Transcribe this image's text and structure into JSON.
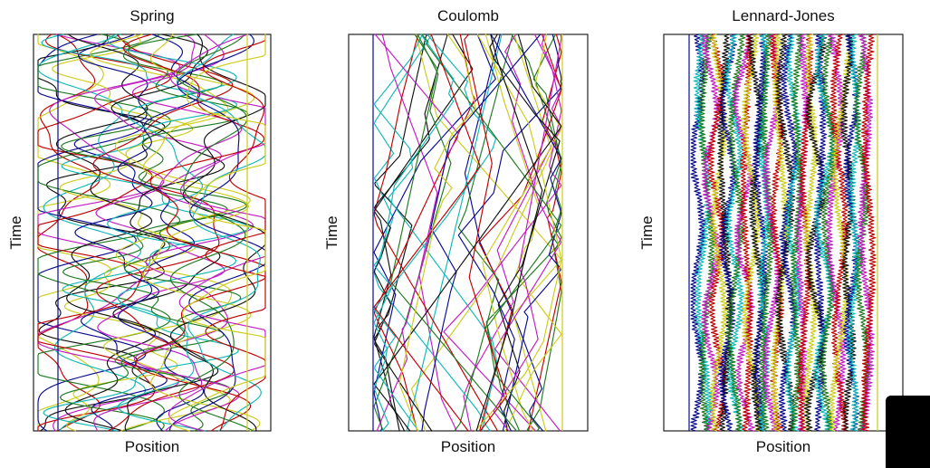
{
  "figure": {
    "palette": [
      "#c00000",
      "#1f7a1f",
      "#0a0a8f",
      "#cccc1a",
      "#c21bc2",
      "#10b8b8",
      "#111111"
    ],
    "frame_color": "#222222"
  },
  "chart_data": [
    {
      "type": "line",
      "title": "Spring",
      "xlabel": "Position",
      "ylabel": "Time",
      "grid": false,
      "legend": "none",
      "walls": [
        {
          "x": 0.0,
          "color": "#0a0a8f"
        },
        {
          "x": 1.0,
          "color": "#cccc1a"
        }
      ],
      "trajectory_style": "smooth large-amplitude oscillations that cross each other",
      "trajectory_count": 30,
      "series_values": "not labeled"
    },
    {
      "type": "line",
      "title": "Coulomb",
      "xlabel": "Position",
      "ylabel": "Time",
      "grid": false,
      "legend": "none",
      "walls": [
        {
          "x": 0.0,
          "color": "#0a0a8f"
        },
        {
          "x": 1.0,
          "color": "#cccc1a"
        }
      ],
      "trajectory_style": "nearly straight segments that bounce between the walls",
      "trajectory_count": 40,
      "series_values": "not labeled"
    },
    {
      "type": "line",
      "title": "Lennard-Jones",
      "xlabel": "Position",
      "ylabel": "Time",
      "grid": false,
      "legend": "none",
      "walls": [
        {
          "x": 0.0,
          "color": "#0a0a8f"
        },
        {
          "x": 1.0,
          "color": "#cccc1a"
        }
      ],
      "trajectory_style": "many closely spaced jittery vertical lines",
      "trajectory_count": 40,
      "series_values": "not labeled"
    }
  ]
}
